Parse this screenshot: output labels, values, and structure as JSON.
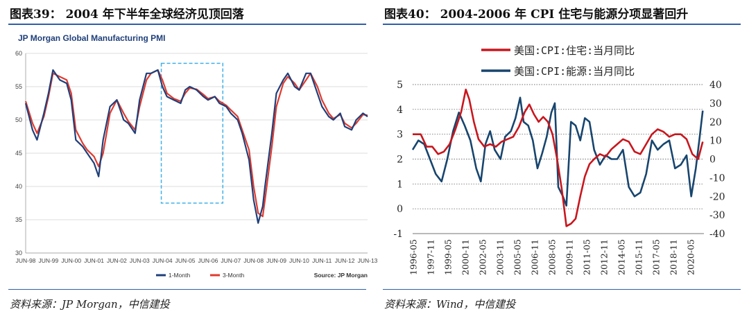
{
  "left": {
    "figure_title": "图表39： 2004 年下半年全球经济见顶回落",
    "source": "资料来源：JP Morgan，中信建投",
    "chart_data": {
      "type": "line",
      "title": "JP Morgan Global Manufacturing PMI",
      "source_note": "Source: JP Morgan",
      "ylim": [
        30,
        60
      ],
      "yticks": [
        30,
        35,
        40,
        45,
        50,
        55,
        60
      ],
      "x_tick_labels": [
        "JUN-98",
        "JUN-99",
        "JUN-00",
        "JUN-01",
        "JUN-02",
        "JUN-03",
        "JUN-04",
        "JUN-05",
        "JUN-06",
        "JUN-07",
        "JUN-08",
        "JUN-09",
        "JUN-10",
        "JUN-11",
        "JUN-12",
        "JUN-13"
      ],
      "legend_position": "bottom",
      "grid": "horizontal",
      "colors": {
        "one_month": "#1f3f7a",
        "three_month": "#e03a2e",
        "highlight_box": "#3fb0e8"
      },
      "highlight_box": {
        "from": "JUN-04",
        "to": "JUN-06"
      },
      "series": [
        {
          "name": "1-Month",
          "x": [
            1998.5,
            1998.8,
            1999.0,
            1999.3,
            1999.5,
            1999.7,
            2000.0,
            2000.3,
            2000.5,
            2000.7,
            2001.0,
            2001.2,
            2001.5,
            2001.7,
            2001.9,
            2002.2,
            2002.5,
            2002.8,
            2003.0,
            2003.3,
            2003.5,
            2003.8,
            2004.0,
            2004.3,
            2004.5,
            2004.7,
            2005.0,
            2005.3,
            2005.5,
            2005.7,
            2006.0,
            2006.3,
            2006.5,
            2006.8,
            2007.0,
            2007.3,
            2007.5,
            2007.8,
            2008.0,
            2008.3,
            2008.5,
            2008.7,
            2008.9,
            2009.0,
            2009.3,
            2009.5,
            2009.8,
            2010.0,
            2010.3,
            2010.5,
            2010.8,
            2011.0,
            2011.3,
            2011.5,
            2011.8,
            2012.0,
            2012.3,
            2012.5,
            2012.8,
            2013.0,
            2013.3,
            2013.5
          ],
          "y": [
            52.5,
            48.5,
            47,
            51,
            54,
            57.5,
            56,
            55.5,
            53,
            47,
            46,
            45,
            43.5,
            41.5,
            47,
            52,
            53,
            50,
            49.5,
            48,
            53,
            57,
            57,
            57.5,
            55,
            53.5,
            53,
            52.5,
            54.5,
            55,
            54.5,
            53.5,
            53,
            53.5,
            52.5,
            52,
            51,
            50,
            48,
            44,
            38,
            34.5,
            37,
            40,
            48,
            54,
            56,
            57,
            55,
            54.5,
            57,
            57,
            54,
            52,
            50.5,
            50,
            51,
            49,
            48.5,
            50,
            51,
            50.5
          ]
        },
        {
          "name": "3-Month",
          "x": [
            1998.5,
            1998.8,
            1999.0,
            1999.3,
            1999.5,
            1999.7,
            2000.0,
            2000.3,
            2000.5,
            2000.7,
            2001.0,
            2001.2,
            2001.5,
            2001.7,
            2001.9,
            2002.2,
            2002.5,
            2002.8,
            2003.0,
            2003.3,
            2003.5,
            2003.8,
            2004.0,
            2004.3,
            2004.5,
            2004.7,
            2005.0,
            2005.3,
            2005.5,
            2005.7,
            2006.0,
            2006.3,
            2006.5,
            2006.8,
            2007.0,
            2007.3,
            2007.5,
            2007.8,
            2008.0,
            2008.3,
            2008.5,
            2008.7,
            2008.9,
            2009.0,
            2009.3,
            2009.5,
            2009.8,
            2010.0,
            2010.3,
            2010.5,
            2010.8,
            2011.0,
            2011.3,
            2011.5,
            2011.8,
            2012.0,
            2012.3,
            2012.5,
            2012.8,
            2013.0,
            2013.3,
            2013.5
          ],
          "y": [
            52.8,
            49.5,
            48,
            50.5,
            53.5,
            57,
            56.5,
            56,
            54,
            48.5,
            46.5,
            45.5,
            44.5,
            43,
            45,
            51,
            53,
            51,
            49.8,
            48.5,
            52,
            56,
            57,
            57.5,
            56,
            54,
            53.2,
            52.8,
            54,
            54.8,
            54.6,
            53.8,
            53.2,
            53.5,
            52.8,
            52.2,
            51.5,
            50.5,
            48.5,
            45.5,
            40,
            36,
            35.5,
            38,
            46,
            52,
            55.5,
            56.5,
            55.5,
            54.5,
            56,
            57,
            55,
            53,
            51,
            50.2,
            50.8,
            49.5,
            48.8,
            49.5,
            50.8,
            50.7
          ]
        }
      ]
    }
  },
  "right": {
    "figure_title": "图表40： 2004-2006 年 CPI 住宅与能源分项显著回升",
    "source": "资料来源：Wind，中信建投",
    "chart_data": {
      "type": "line",
      "y_left_lim": [
        -1,
        5
      ],
      "y_left_ticks": [
        -1,
        0,
        1,
        2,
        3,
        4,
        5
      ],
      "y_right_lim": [
        -40,
        40
      ],
      "y_right_ticks": [
        -40,
        -30,
        -20,
        -10,
        0,
        10,
        20,
        30,
        40
      ],
      "x_tick_labels": [
        "1996-05",
        "1997-11",
        "1999-05",
        "2000-11",
        "2002-05",
        "2003-11",
        "2005-05",
        "2006-11",
        "2008-05",
        "2009-11",
        "2011-05",
        "2012-11",
        "2014-05",
        "2015-11",
        "2017-05",
        "2018-11",
        "2020-05"
      ],
      "xlim": [
        1996.3,
        2021.5
      ],
      "legend_position": "top-left",
      "grid": "horizontal dotted",
      "colors": {
        "housing": "#c8161d",
        "energy": "#17456e"
      },
      "series": [
        {
          "name": "美国:CPI:住宅:当月同比",
          "axis": "left",
          "x": [
            1996.3,
            1997.0,
            1997.5,
            1998.0,
            1998.5,
            1999.0,
            1999.5,
            2000.0,
            2000.5,
            2000.9,
            2001.2,
            2001.6,
            2002.0,
            2002.5,
            2003.0,
            2003.5,
            2004.0,
            2004.5,
            2005.0,
            2005.5,
            2006.0,
            2006.4,
            2006.8,
            2007.2,
            2007.6,
            2008.0,
            2008.4,
            2008.8,
            2009.2,
            2009.6,
            2010.0,
            2010.4,
            2010.8,
            2011.2,
            2011.6,
            2012.0,
            2012.5,
            2013.0,
            2013.5,
            2014.0,
            2014.5,
            2015.0,
            2015.5,
            2016.0,
            2016.5,
            2017.0,
            2017.5,
            2018.0,
            2018.5,
            2019.0,
            2019.5,
            2020.0,
            2020.5,
            2021.0,
            2021.4
          ],
          "y": [
            3.0,
            3.0,
            2.5,
            2.5,
            2.2,
            2.3,
            2.6,
            3.2,
            3.9,
            4.8,
            4.4,
            3.5,
            2.8,
            2.5,
            2.6,
            2.5,
            2.7,
            2.8,
            2.9,
            3.3,
            3.9,
            4.2,
            3.8,
            3.5,
            3.7,
            3.5,
            3.0,
            2.0,
            0.8,
            -0.7,
            -0.6,
            -0.4,
            0.5,
            1.3,
            1.8,
            2.0,
            2.2,
            2.1,
            2.4,
            2.6,
            2.8,
            2.7,
            2.3,
            2.2,
            2.6,
            3.0,
            3.2,
            3.1,
            2.9,
            3.0,
            3.0,
            2.8,
            2.2,
            2.0,
            2.7
          ]
        },
        {
          "name": "美国:CPI:能源:当月同比",
          "axis": "right",
          "x": [
            1996.3,
            1996.8,
            1997.3,
            1997.8,
            1998.3,
            1998.8,
            1999.3,
            1999.8,
            2000.3,
            2000.8,
            2001.3,
            2001.8,
            2002.2,
            2002.6,
            2003.0,
            2003.4,
            2003.9,
            2004.3,
            2004.8,
            2005.2,
            2005.6,
            2005.9,
            2006.3,
            2006.7,
            2007.1,
            2007.5,
            2007.9,
            2008.3,
            2008.6,
            2008.9,
            2009.3,
            2009.6,
            2010.0,
            2010.4,
            2010.8,
            2011.2,
            2011.6,
            2012.0,
            2012.5,
            2013.0,
            2013.5,
            2014.0,
            2014.5,
            2015.0,
            2015.5,
            2016.0,
            2016.5,
            2017.0,
            2017.5,
            2018.0,
            2018.5,
            2019.0,
            2019.5,
            2020.0,
            2020.4,
            2020.8,
            2021.1,
            2021.4
          ],
          "y": [
            5,
            10,
            8,
            0,
            -8,
            -12,
            0,
            15,
            25,
            18,
            10,
            -5,
            -12,
            8,
            15,
            5,
            0,
            12,
            15,
            22,
            33,
            20,
            18,
            10,
            -5,
            3,
            12,
            25,
            30,
            -15,
            -20,
            -25,
            20,
            18,
            10,
            22,
            20,
            5,
            -3,
            2,
            0,
            0,
            5,
            -15,
            -20,
            -18,
            -8,
            10,
            5,
            8,
            10,
            -5,
            -3,
            2,
            -20,
            -5,
            10,
            26
          ]
        }
      ]
    }
  }
}
